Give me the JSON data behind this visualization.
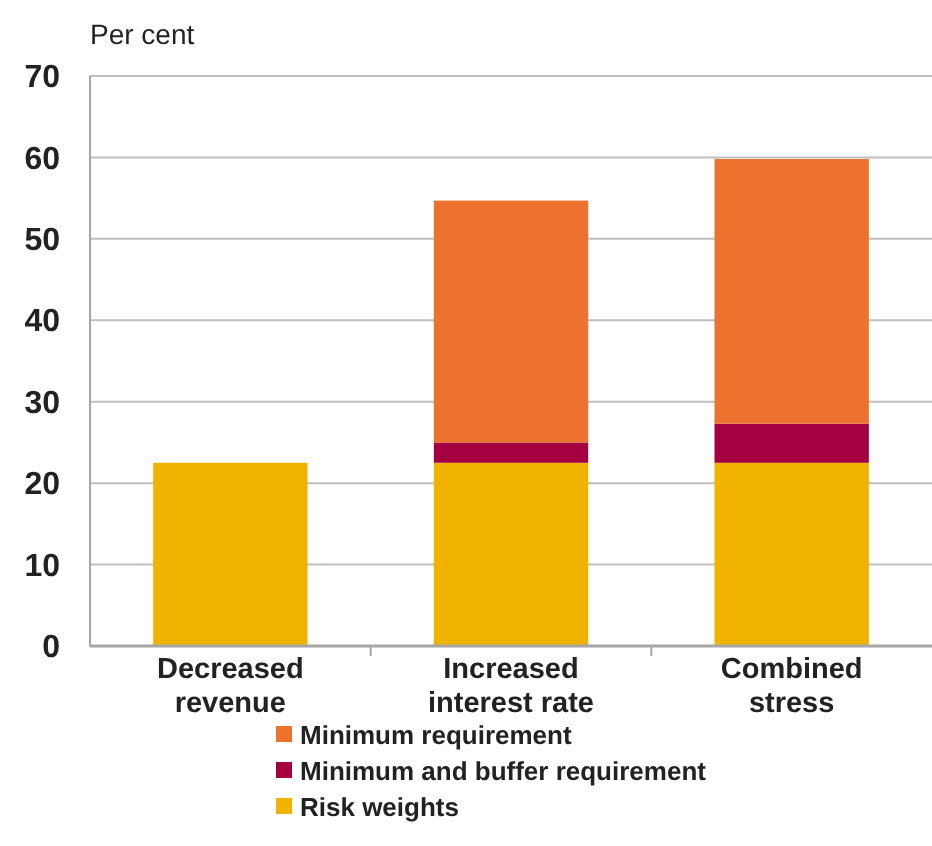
{
  "chart_data": {
    "type": "bar",
    "ylabel": "Per cent",
    "categories": [
      "Decreased revenue",
      "Increased interest rate",
      "Combined stress"
    ],
    "stacked": true,
    "series": [
      {
        "name": "Risk weights",
        "color": "#f0b400",
        "values": [
          22.5,
          22.5,
          22.5
        ]
      },
      {
        "name": "Minimum and buffer requirement",
        "color": "#a50040",
        "values": [
          null,
          2.5,
          4.8
        ]
      },
      {
        "name": "Minimum requirement",
        "color": "#ec722e",
        "values": [
          null,
          29.7,
          32.5
        ]
      }
    ],
    "ylim": [
      0,
      70
    ],
    "yticks": [
      0,
      10,
      20,
      30,
      40,
      50,
      60,
      70
    ],
    "grid": "y",
    "legend": "bottom"
  }
}
